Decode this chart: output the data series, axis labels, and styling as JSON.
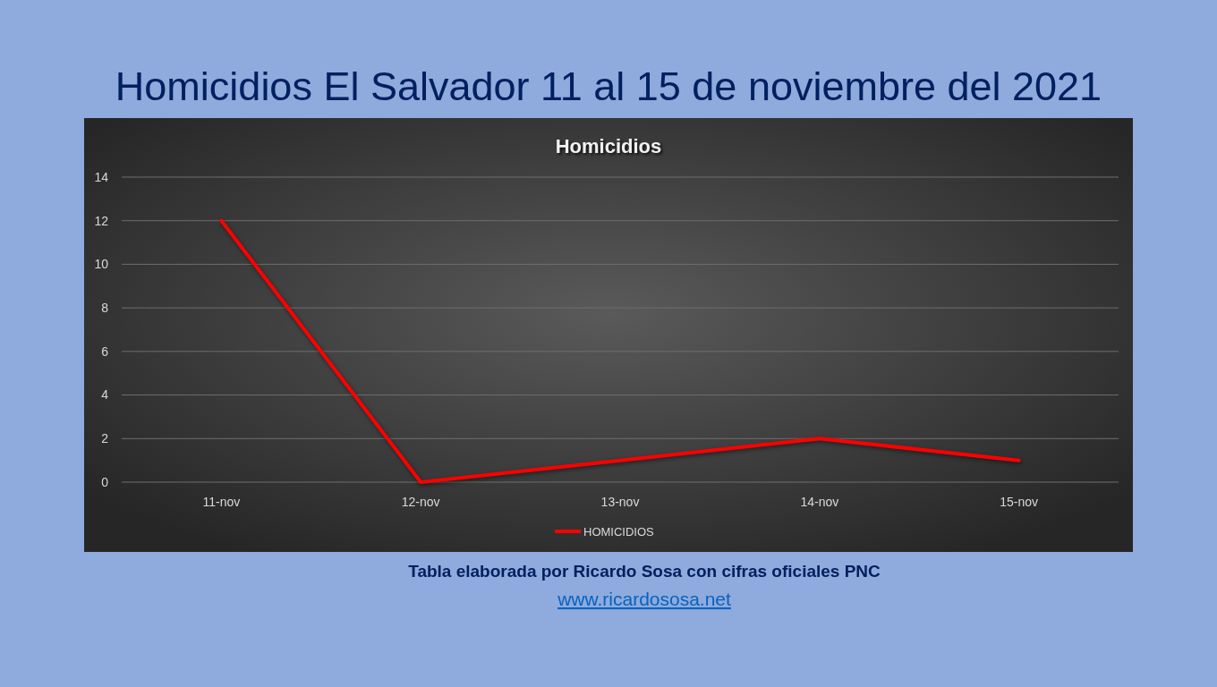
{
  "chart_data": {
    "type": "line",
    "title": "Homicidios El Salvador 11 al 15 de noviembre del 2021",
    "subtitle": "Homicidios",
    "categories": [
      "11-nov",
      "12-nov",
      "13-nov",
      "14-nov",
      "15-nov"
    ],
    "series": [
      {
        "name": "HOMICIDIOS",
        "color": "#ff0000",
        "values": [
          12,
          0,
          1,
          2,
          1
        ]
      }
    ],
    "ylim": [
      0,
      14
    ],
    "yticks": [
      0,
      2,
      4,
      6,
      8,
      10,
      12,
      14
    ],
    "grid": "y",
    "legend": "bottom",
    "annotations": [
      "Tabla elaborada por Ricardo Sosa con cifras oficiales PNC",
      "www.ricardososa.net"
    ]
  }
}
